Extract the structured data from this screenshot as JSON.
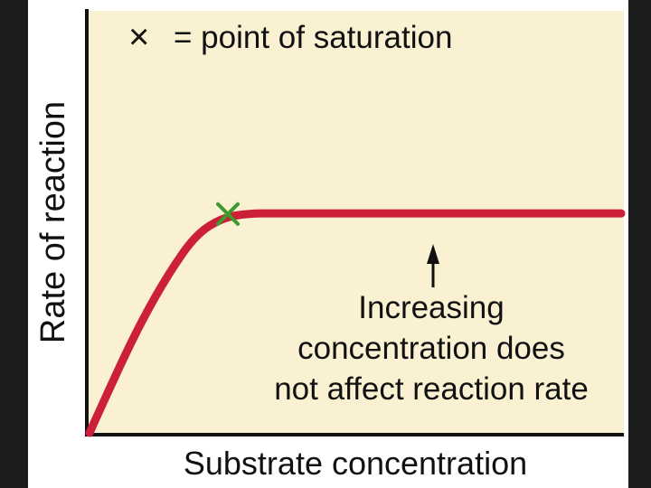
{
  "chart_data": {
    "type": "line",
    "title": "",
    "xlabel": "Substrate concentration",
    "ylabel": "Rate of reaction",
    "legend": {
      "marker": "×",
      "label": "= point of saturation",
      "placement": "top-left"
    },
    "annotation": {
      "lines": [
        "Increasing",
        "concentration does",
        "not affect reaction rate"
      ],
      "arrow": "up"
    },
    "xlim": [
      0,
      100
    ],
    "ylim": [
      0,
      100
    ],
    "series": [
      {
        "x": [
          0,
          5,
          10,
          15,
          20,
          25,
          30,
          35,
          40,
          45,
          50,
          55,
          60,
          65,
          70,
          75,
          80,
          85,
          90,
          95,
          100
        ],
        "y": [
          0,
          14,
          27,
          38,
          47,
          51,
          52,
          52,
          52,
          52,
          52,
          52,
          52,
          52,
          52,
          52,
          52,
          52,
          52,
          52,
          52
        ]
      }
    ],
    "saturation_point": {
      "x": 25,
      "y": 51
    },
    "grid": false
  },
  "colors": {
    "plot_background": "#faf0d2",
    "curve": "#cc1f38",
    "marker": "#3c9a2e",
    "axis": "#111111"
  }
}
